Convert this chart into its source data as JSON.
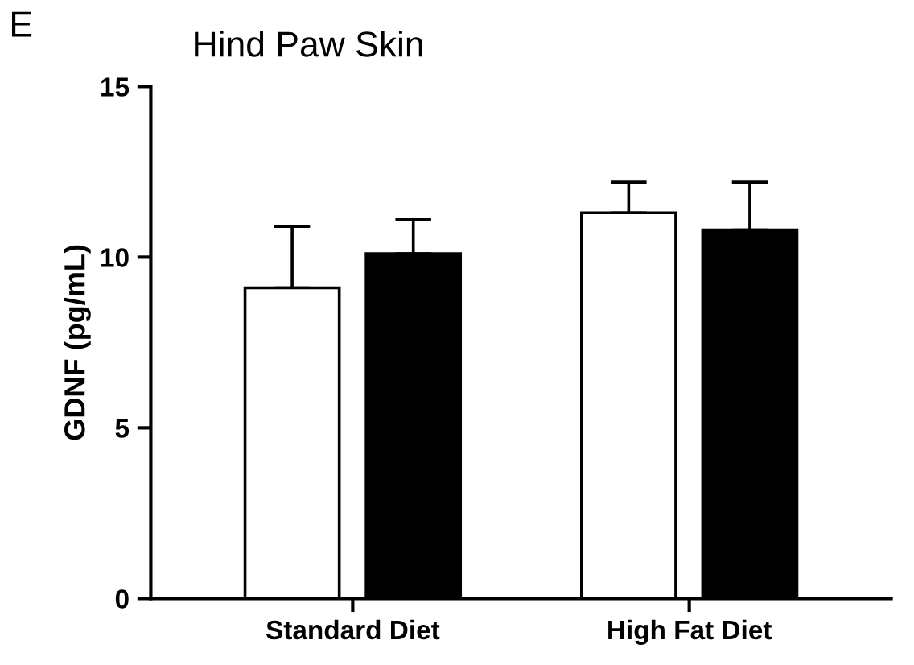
{
  "chart_data": {
    "type": "bar",
    "title": "Hind Paw Skin",
    "ylabel": "GDNF (pg/mL)",
    "annotations": [
      "E"
    ],
    "categories": [
      "Standard Diet",
      "High Fat Diet"
    ],
    "series": [
      {
        "color": "#ffffff",
        "values": [
          9.1,
          11.3
        ],
        "errors": [
          [
            9.1,
            10.9
          ],
          [
            11.3,
            12.2
          ]
        ]
      },
      {
        "color": "#000000",
        "values": [
          10.1,
          10.8
        ],
        "errors": [
          [
            10.1,
            11.1
          ],
          [
            10.8,
            12.2
          ]
        ]
      }
    ],
    "ylim": [
      0,
      15
    ],
    "yticks": [
      0,
      5,
      10,
      15
    ],
    "grid": false,
    "legend": false
  }
}
